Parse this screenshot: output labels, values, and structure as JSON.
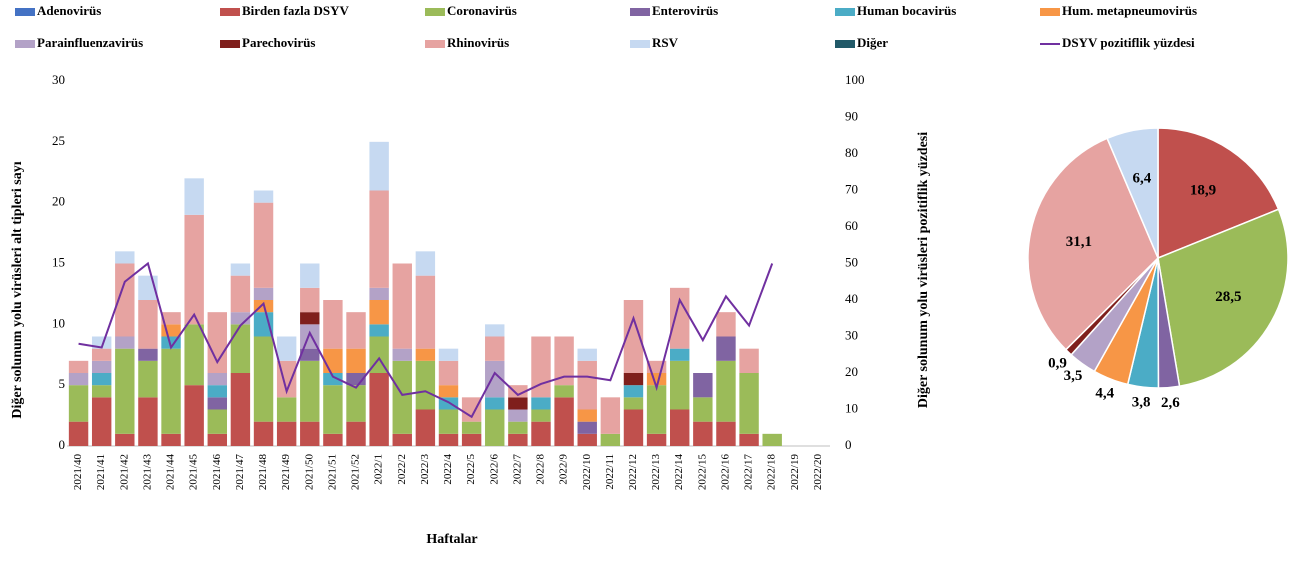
{
  "chart_data": [
    {
      "type": "bar",
      "x_label": "Haftalar",
      "y_label": "Diğer solunum yolu virüsleri alt tipleri sayı",
      "y2_label": "Diğer solunum yolu virüsleri pozitiflik yüzdesi",
      "categories": [
        "2021/40",
        "2021/41",
        "2021/42",
        "2021/43",
        "2021/44",
        "2021/45",
        "2021/46",
        "2021/47",
        "2021/48",
        "2021/49",
        "2021/50",
        "2021/51",
        "2021/52",
        "2022/1",
        "2022/2",
        "2022/3",
        "2022/4",
        "2022/5",
        "2022/6",
        "2022/7",
        "2022/8",
        "2022/9",
        "2022/10",
        "2022/11",
        "2022/12",
        "2022/13",
        "2022/14",
        "2022/15",
        "2022/16",
        "2022/17",
        "2022/18",
        "2022/19",
        "2022/20"
      ],
      "stacked": true,
      "grid": false,
      "ylim": [
        0,
        30
      ],
      "yticks": [
        0,
        5,
        10,
        15,
        20,
        25,
        30
      ],
      "y2lim": [
        0,
        100
      ],
      "y2ticks": [
        0,
        10,
        20,
        30,
        40,
        50,
        60,
        70,
        80,
        90,
        100
      ],
      "series": [
        {
          "name": "Adenovirüs",
          "color": "#4472c4",
          "values": [
            0,
            0,
            0,
            0,
            0,
            0,
            0,
            0,
            0,
            0,
            0,
            0,
            0,
            0,
            0,
            0,
            0,
            0,
            0,
            0,
            0,
            0,
            0,
            0,
            0,
            0,
            0,
            0,
            0,
            0,
            0,
            0,
            0
          ]
        },
        {
          "name": "Birden fazla DSYV",
          "color": "#c0504d",
          "values": [
            2,
            4,
            1,
            4,
            1,
            5,
            1,
            6,
            2,
            2,
            2,
            1,
            2,
            6,
            1,
            3,
            1,
            1,
            0,
            1,
            2,
            4,
            1,
            0,
            3,
            1,
            3,
            2,
            2,
            1,
            0,
            0,
            0
          ]
        },
        {
          "name": "Coronavirüs",
          "color": "#9bbb59",
          "values": [
            3,
            1,
            7,
            3,
            7,
            5,
            2,
            4,
            7,
            2,
            5,
            4,
            3,
            3,
            6,
            4,
            2,
            1,
            3,
            1,
            1,
            1,
            0,
            1,
            1,
            4,
            4,
            2,
            5,
            5,
            1,
            0,
            0
          ]
        },
        {
          "name": "Enterovirüs",
          "color": "#8064a2",
          "values": [
            0,
            0,
            0,
            1,
            0,
            0,
            1,
            0,
            0,
            0,
            1,
            0,
            1,
            0,
            0,
            0,
            0,
            0,
            0,
            0,
            0,
            0,
            1,
            0,
            0,
            0,
            0,
            2,
            2,
            0,
            0,
            0,
            0
          ]
        },
        {
          "name": "Human bocavirüs",
          "color": "#4bacc6",
          "values": [
            0,
            1,
            0,
            0,
            1,
            0,
            1,
            0,
            2,
            0,
            0,
            1,
            0,
            1,
            0,
            0,
            1,
            0,
            1,
            0,
            1,
            0,
            0,
            0,
            1,
            0,
            1,
            0,
            0,
            0,
            0,
            0,
            0
          ]
        },
        {
          "name": "Hum. metapneumovirüs",
          "color": "#f79646",
          "values": [
            0,
            0,
            0,
            0,
            1,
            0,
            0,
            0,
            1,
            0,
            0,
            2,
            2,
            2,
            0,
            1,
            1,
            0,
            0,
            0,
            0,
            0,
            1,
            0,
            0,
            1,
            0,
            0,
            0,
            0,
            0,
            0,
            0
          ]
        },
        {
          "name": "Parainfluenzavirüs",
          "color": "#b3a2c7",
          "values": [
            1,
            1,
            1,
            0,
            0,
            0,
            1,
            1,
            1,
            0,
            2,
            0,
            0,
            1,
            1,
            0,
            0,
            0,
            3,
            1,
            0,
            0,
            0,
            0,
            0,
            0,
            0,
            0,
            0,
            0,
            0,
            0,
            0
          ]
        },
        {
          "name": "Parechovirüs",
          "color": "#7f1f1c",
          "values": [
            0,
            0,
            0,
            0,
            0,
            0,
            0,
            0,
            0,
            0,
            1,
            0,
            0,
            0,
            0,
            0,
            0,
            0,
            0,
            1,
            0,
            0,
            0,
            0,
            1,
            0,
            0,
            0,
            0,
            0,
            0,
            0,
            0
          ]
        },
        {
          "name": "Rhinovirüs",
          "color": "#e6a3a1",
          "values": [
            1,
            1,
            6,
            4,
            1,
            9,
            5,
            3,
            7,
            3,
            2,
            4,
            3,
            8,
            7,
            6,
            2,
            2,
            2,
            1,
            5,
            4,
            4,
            3,
            6,
            1,
            5,
            0,
            2,
            2,
            0,
            0,
            0
          ]
        },
        {
          "name": "RSV",
          "color": "#c6d9f1",
          "values": [
            0,
            1,
            1,
            2,
            0,
            3,
            0,
            1,
            1,
            2,
            2,
            0,
            0,
            4,
            0,
            2,
            1,
            0,
            1,
            0,
            0,
            0,
            1,
            0,
            0,
            0,
            0,
            0,
            0,
            0,
            0,
            0,
            0
          ]
        },
        {
          "name": "Diğer",
          "color": "#215968",
          "values": [
            0,
            0,
            0,
            0,
            0,
            0,
            0,
            0,
            0,
            0,
            0,
            0,
            0,
            0,
            0,
            0,
            0,
            0,
            0,
            0,
            0,
            0,
            0,
            0,
            0,
            0,
            0,
            0,
            0,
            0,
            0,
            0,
            0
          ]
        },
        {
          "name": "DSYV pozitiflik yüzdesi",
          "color": "#7030a0",
          "type": "line",
          "axis": "y2",
          "values": [
            28,
            27,
            45,
            50,
            27,
            36,
            23,
            33,
            39,
            15,
            31,
            19,
            16,
            24,
            14,
            15,
            12,
            8,
            20,
            14,
            17,
            19,
            19,
            18,
            35,
            16,
            40,
            29,
            41,
            33,
            50,
            null,
            null
          ]
        }
      ]
    },
    {
      "type": "pie",
      "values": [
        18.9,
        28.5,
        2.6,
        3.8,
        4.4,
        3.5,
        0.9,
        31.1,
        6.4
      ],
      "value_labels": [
        "18,9",
        "28,5",
        "2,6",
        "3,8",
        "4,4",
        "3,5",
        "0,9",
        "31,1",
        "6,4"
      ],
      "colors": [
        "#c0504d",
        "#9bbb59",
        "#8064a2",
        "#4bacc6",
        "#f79646",
        "#b3a2c7",
        "#7f1f1c",
        "#e6a3a1",
        "#c6d9f1"
      ]
    }
  ]
}
